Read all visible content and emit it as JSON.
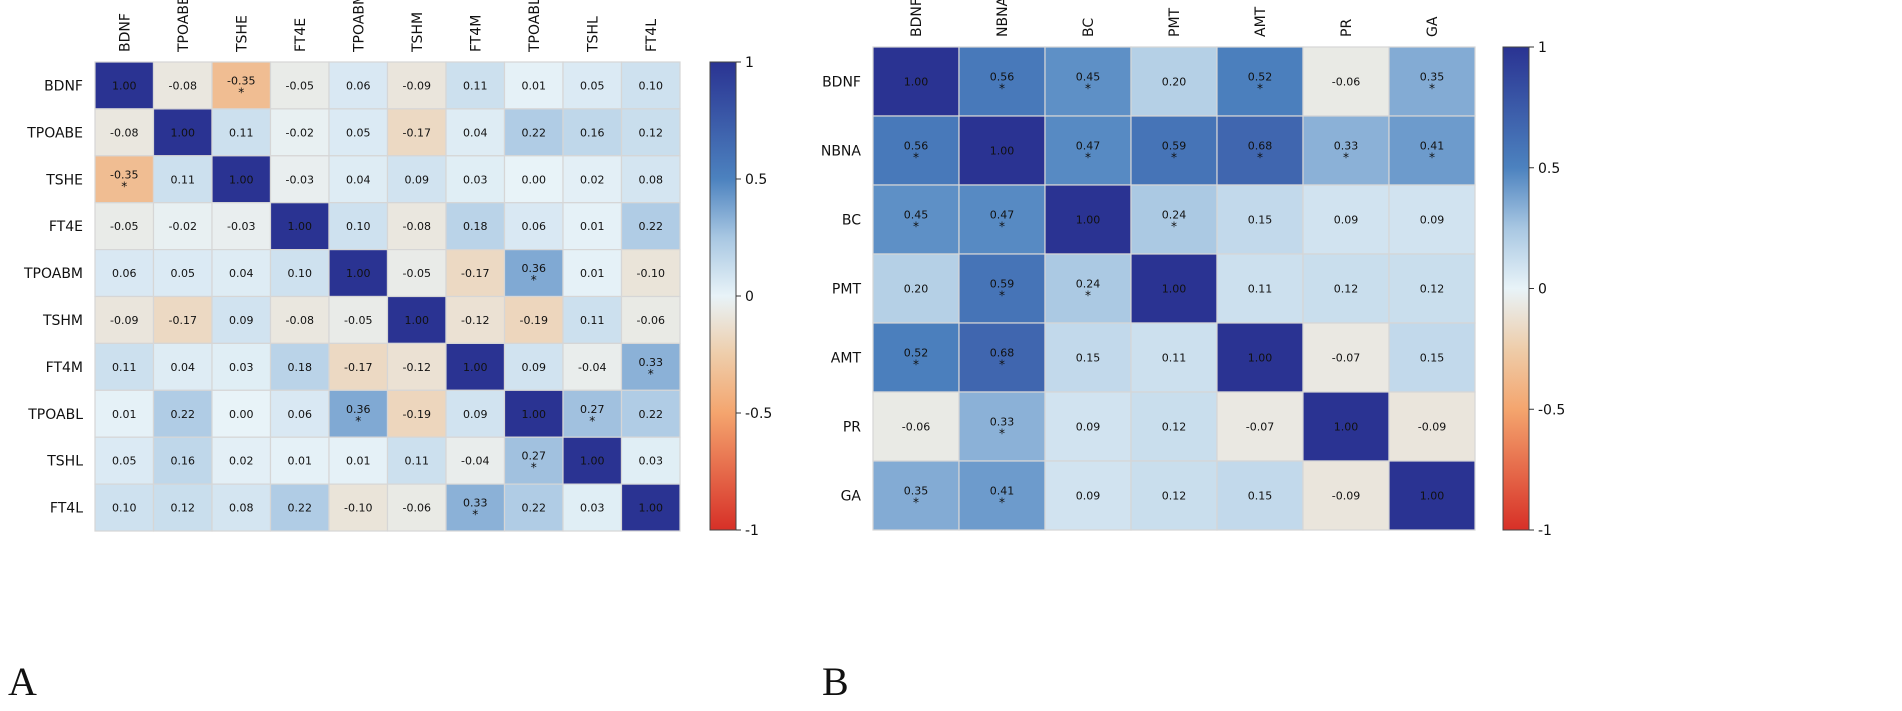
{
  "chart_data": [
    {
      "type": "heatmap",
      "panel_label": "A",
      "variables": [
        "BDNF",
        "TPOABE",
        "TSHE",
        "FT4E",
        "TPOABM",
        "TSHM",
        "FT4M",
        "TPOABL",
        "TSHL",
        "FT4L"
      ],
      "matrix": [
        [
          "1.00",
          "-0.08",
          "-0.35",
          "-0.05",
          "0.06",
          "-0.09",
          "0.11",
          "0.01",
          "0.05",
          "0.10"
        ],
        [
          "-0.08",
          "1.00",
          "0.11",
          "-0.02",
          "0.05",
          "-0.17",
          "0.04",
          "0.22",
          "0.16",
          "0.12"
        ],
        [
          "-0.35",
          "0.11",
          "1.00",
          "-0.03",
          "0.04",
          "0.09",
          "0.03",
          "0.00",
          "0.02",
          "0.08"
        ],
        [
          "-0.05",
          "-0.02",
          "-0.03",
          "1.00",
          "0.10",
          "-0.08",
          "0.18",
          "0.06",
          "0.01",
          "0.22"
        ],
        [
          "0.06",
          "0.05",
          "0.04",
          "0.10",
          "1.00",
          "-0.05",
          "-0.17",
          "0.36",
          "0.01",
          "-0.10"
        ],
        [
          "-0.09",
          "-0.17",
          "0.09",
          "-0.08",
          "-0.05",
          "1.00",
          "-0.12",
          "-0.19",
          "0.11",
          "-0.06"
        ],
        [
          "0.11",
          "0.04",
          "0.03",
          "0.18",
          "-0.17",
          "-0.12",
          "1.00",
          "0.09",
          "-0.04",
          "0.33"
        ],
        [
          "0.01",
          "0.22",
          "0.00",
          "0.06",
          "0.36",
          "-0.19",
          "0.09",
          "1.00",
          "0.27",
          "0.22"
        ],
        [
          "0.05",
          "0.16",
          "0.02",
          "0.01",
          "0.01",
          "0.11",
          "-0.04",
          "0.27",
          "1.00",
          "0.03"
        ],
        [
          "0.10",
          "0.12",
          "0.08",
          "0.22",
          "-0.10",
          "-0.06",
          "0.33",
          "0.22",
          "0.03",
          "1.00"
        ]
      ],
      "significant": [
        [
          0,
          2
        ],
        [
          2,
          0
        ],
        [
          4,
          7
        ],
        [
          7,
          4
        ],
        [
          6,
          9
        ],
        [
          9,
          6
        ],
        [
          7,
          8
        ],
        [
          8,
          7
        ]
      ],
      "significance_marker": "*",
      "colorbar": {
        "range": [
          -1,
          1
        ],
        "ticks": [
          "1",
          "0.5",
          "0",
          "-0.5",
          "-1"
        ]
      }
    },
    {
      "type": "heatmap",
      "panel_label": "B",
      "variables": [
        "BDNF",
        "NBNA",
        "BC",
        "PMT",
        "AMT",
        "PR",
        "GA"
      ],
      "matrix": [
        [
          "1.00",
          "0.56",
          "0.45",
          "0.20",
          "0.52",
          "-0.06",
          "0.35"
        ],
        [
          "0.56",
          "1.00",
          "0.47",
          "0.59",
          "0.68",
          "0.33",
          "0.41"
        ],
        [
          "0.45",
          "0.47",
          "1.00",
          "0.24",
          "0.15",
          "0.09",
          "0.09"
        ],
        [
          "0.20",
          "0.59",
          "0.24",
          "1.00",
          "0.11",
          "0.12",
          "0.12"
        ],
        [
          "0.52",
          "0.68",
          "0.15",
          "0.11",
          "1.00",
          "-0.07",
          "0.15"
        ],
        [
          "-0.06",
          "0.33",
          "0.09",
          "0.12",
          "-0.07",
          "1.00",
          "-0.09"
        ],
        [
          "0.35",
          "0.41",
          "0.09",
          "0.12",
          "0.15",
          "-0.09",
          "1.00"
        ]
      ],
      "significant": [
        [
          0,
          1
        ],
        [
          0,
          2
        ],
        [
          0,
          4
        ],
        [
          0,
          6
        ],
        [
          1,
          0
        ],
        [
          1,
          2
        ],
        [
          1,
          3
        ],
        [
          1,
          4
        ],
        [
          1,
          5
        ],
        [
          1,
          6
        ],
        [
          2,
          0
        ],
        [
          2,
          1
        ],
        [
          2,
          3
        ],
        [
          3,
          1
        ],
        [
          3,
          2
        ],
        [
          4,
          0
        ],
        [
          4,
          1
        ],
        [
          5,
          1
        ],
        [
          6,
          0
        ],
        [
          6,
          1
        ]
      ],
      "significance_marker": "*",
      "colorbar": {
        "range": [
          -1,
          1
        ],
        "ticks": [
          "1",
          "0.5",
          "0",
          "-0.5",
          "-1"
        ]
      }
    }
  ]
}
